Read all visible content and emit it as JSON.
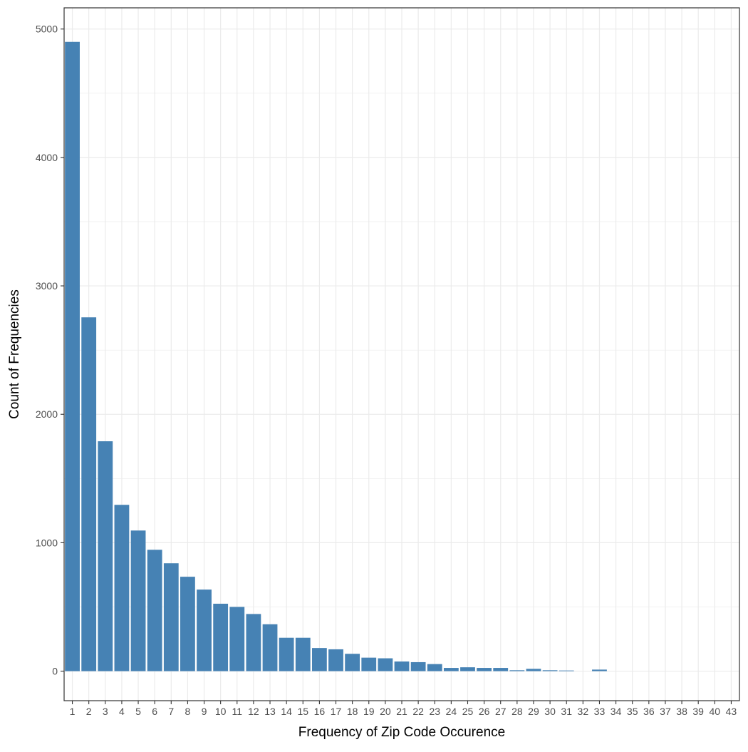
{
  "chart_data": {
    "type": "bar",
    "title": "",
    "xlabel": "Frequency of Zip Code Occurence",
    "ylabel": "Count of Frequencies",
    "categories": [
      "1",
      "2",
      "3",
      "4",
      "5",
      "6",
      "7",
      "8",
      "9",
      "10",
      "11",
      "12",
      "13",
      "14",
      "15",
      "16",
      "17",
      "18",
      "19",
      "20",
      "21",
      "22",
      "23",
      "24",
      "25",
      "26",
      "27",
      "28",
      "29",
      "30",
      "31",
      "32",
      "33",
      "34",
      "35",
      "36",
      "37",
      "38",
      "39",
      "40",
      "43"
    ],
    "values": [
      4900,
      2755,
      1790,
      1295,
      1095,
      945,
      840,
      735,
      635,
      525,
      500,
      445,
      365,
      260,
      260,
      180,
      170,
      135,
      105,
      100,
      75,
      70,
      55,
      25,
      30,
      25,
      25,
      7,
      18,
      7,
      5,
      0,
      12,
      0,
      0,
      0,
      0,
      0,
      0,
      0,
      0
    ],
    "ylim": [
      -230,
      5165
    ],
    "yticks": [
      0,
      1000,
      2000,
      3000,
      4000,
      5000
    ],
    "ytick_labels": [
      "0",
      "1000",
      "2000",
      "3000",
      "4000",
      "5000"
    ],
    "grid": true,
    "legend": "none",
    "colors": {
      "bar": "#4682b4",
      "grid": "#ebebeb",
      "panel_border": "#333333"
    }
  }
}
